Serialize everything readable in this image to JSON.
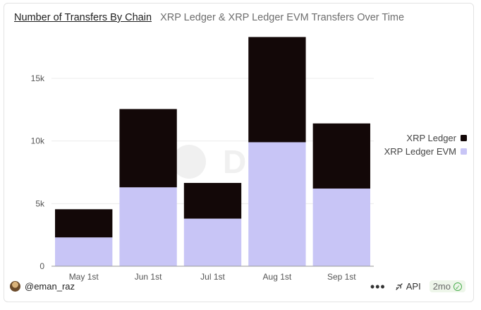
{
  "header": {
    "title": "Number of Transfers By Chain",
    "subtitle": "XRP Ledger & XRP Ledger EVM Transfers Over Time"
  },
  "chart_data": {
    "type": "bar",
    "stacked": true,
    "categories": [
      "May 1st",
      "Jun 1st",
      "Jul 1st",
      "Aug 1st",
      "Sep 1st"
    ],
    "series": [
      {
        "name": "XRP Ledger EVM",
        "color": "#c8c5f6",
        "values": [
          2300,
          6300,
          3800,
          9900,
          6200
        ]
      },
      {
        "name": "XRP Ledger",
        "color": "#130808",
        "values": [
          2250,
          6250,
          2850,
          8400,
          5200
        ]
      }
    ],
    "y_ticks": [
      0,
      5000,
      10000,
      15000
    ],
    "y_tick_labels": [
      "0",
      "5k",
      "10k",
      "15k"
    ],
    "ylim": [
      0,
      19000
    ],
    "legend": [
      "XRP Ledger",
      "XRP Ledger EVM"
    ],
    "legend_position": "right",
    "grid": true,
    "watermark": "Dune"
  },
  "footer": {
    "author": "@eman_raz",
    "api_label": "API",
    "age": "2mo",
    "more_icon": "more-icon",
    "api_icon": "api-icon",
    "check_icon": "check-icon"
  }
}
